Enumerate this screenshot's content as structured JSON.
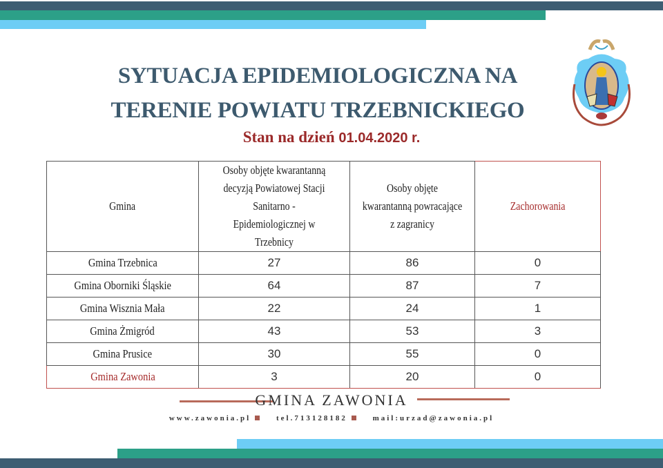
{
  "colors": {
    "dark": "#3d5d72",
    "green": "#2ca088",
    "light": "#6dcdf5",
    "title": "#3d5a6e",
    "accent_red": "#9b2a2a",
    "rule": "#b86a5a"
  },
  "header": {
    "title_line1": "SYTUACJA EPIDEMIOLOGICZNA NA",
    "title_line2": "TERENIE POWIATU TRZEBNICKIEGO",
    "date_label": "Stan na dzień",
    "date_value": "01.04.2020 r."
  },
  "logo": {
    "icon": "coat-of-arms"
  },
  "table": {
    "headers": [
      "Gmina",
      "Osoby objęte kwarantanną decyzją Powiatowej Stacji Sanitarno -Epidemiologicznej w Trzebnicy",
      "Osoby objęte kwarantanną powracające z zagranicy",
      "Zachorowania"
    ],
    "rows": [
      {
        "gmina": "Gmina Trzebnica",
        "pssе": "27",
        "zagranica": "86",
        "zachorowania": "0"
      },
      {
        "gmina": "Gmina Oborniki Śląskie",
        "pssе": "64",
        "zagranica": "87",
        "zachorowania": "7"
      },
      {
        "gmina": "Gmina Wisznia Mała",
        "pssе": "22",
        "zagranica": "24",
        "zachorowania": "1"
      },
      {
        "gmina": "Gmina Żmigród",
        "pssе": "43",
        "zagranica": "53",
        "zachorowania": "3"
      },
      {
        "gmina": "Gmina Prusice",
        "pssе": "30",
        "zagranica": "55",
        "zachorowania": "0"
      },
      {
        "gmina": "Gmina Zawonia",
        "pssе": "3",
        "zagranica": "20",
        "zachorowania": "0"
      }
    ]
  },
  "footer": {
    "name": "GMINA ZAWONIA",
    "www": "www.zawonia.pl",
    "tel": "tel.713128182",
    "mail": "mail:urzad@zawonia.pl"
  }
}
